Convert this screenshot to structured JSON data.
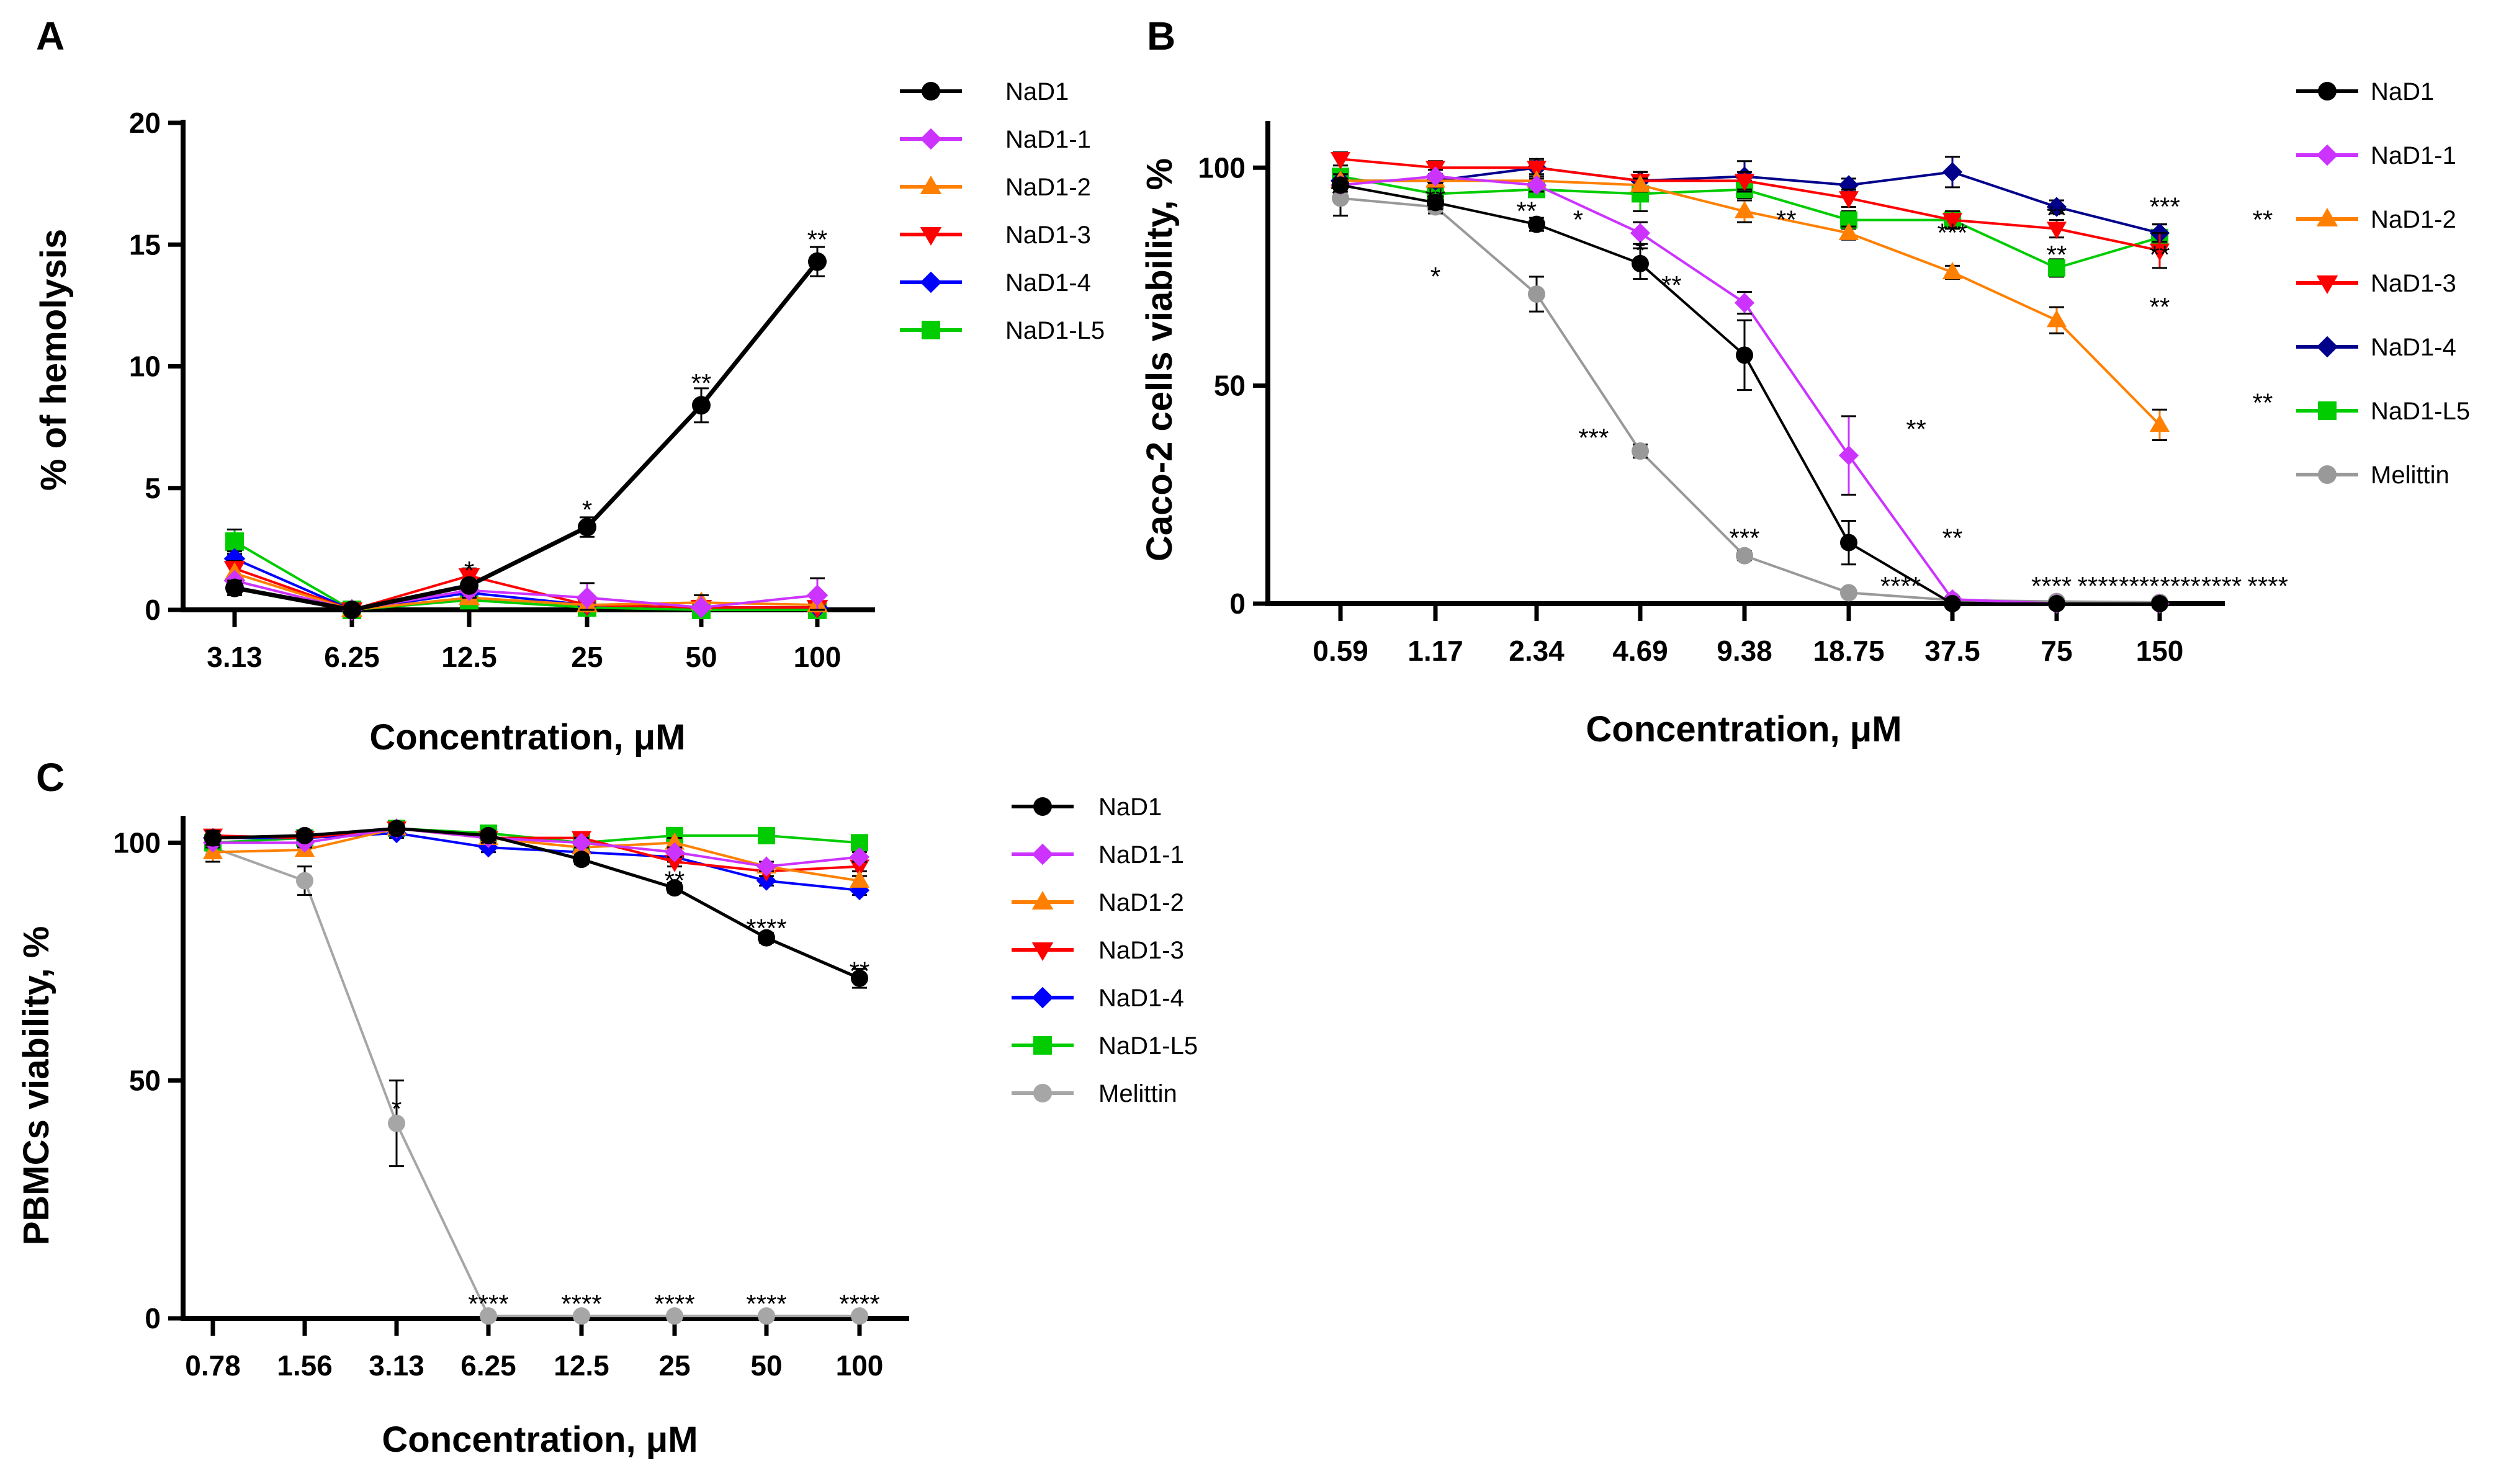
{
  "chart_data": [
    {
      "panel": "A",
      "type": "line",
      "xlabel": "Concentration, μM",
      "ylabel": "% of hemolysis",
      "categories": [
        "3.13",
        "6.25",
        "12.5",
        "25",
        "50",
        "100"
      ],
      "ylim": [
        0,
        20
      ],
      "yticks": [
        "0",
        "5",
        "10",
        "15",
        "20"
      ],
      "series": [
        {
          "name": "NaD1",
          "color": "#000000",
          "marker": "circle",
          "values": [
            0.9,
            0.0,
            1.0,
            3.4,
            8.4,
            14.3
          ],
          "errors": [
            0.3,
            0.05,
            0.2,
            0.4,
            0.7,
            0.6
          ]
        },
        {
          "name": "NaD1-1",
          "color": "#cc33ff",
          "marker": "diamond",
          "values": [
            1.2,
            0.0,
            0.8,
            0.5,
            0.1,
            0.6
          ],
          "errors": [
            0.2,
            0.05,
            0.3,
            0.6,
            0.5,
            0.7
          ]
        },
        {
          "name": "NaD1-2",
          "color": "#ff8000",
          "marker": "triangle-up",
          "values": [
            1.5,
            0.0,
            0.5,
            0.2,
            0.3,
            0.2
          ],
          "errors": [
            0.2,
            0.05,
            0.2,
            0.2,
            0.3,
            0.2
          ]
        },
        {
          "name": "NaD1-3",
          "color": "#ff0000",
          "marker": "triangle-down",
          "values": [
            1.7,
            0.0,
            1.4,
            0.2,
            0.1,
            0.1
          ],
          "errors": [
            0.3,
            0.05,
            0.3,
            0.2,
            0.2,
            0.2
          ]
        },
        {
          "name": "NaD1-4",
          "color": "#0000ff",
          "marker": "diamond",
          "values": [
            2.1,
            0.0,
            0.7,
            0.2,
            0.1,
            0.1
          ],
          "errors": [
            0.3,
            0.05,
            0.2,
            0.2,
            0.2,
            0.2
          ]
        },
        {
          "name": "NaD1-L5",
          "color": "#00cc00",
          "marker": "square",
          "values": [
            2.8,
            0.0,
            0.4,
            0.1,
            0.0,
            0.0
          ],
          "errors": [
            0.5,
            0.05,
            0.2,
            0.2,
            0.2,
            0.2
          ]
        }
      ],
      "annotations": [
        {
          "category": "12.5",
          "y": 1.6,
          "text": "*"
        },
        {
          "category": "25",
          "y": 4.1,
          "text": "*"
        },
        {
          "category": "50",
          "y": 9.3,
          "text": "**"
        },
        {
          "category": "100",
          "y": 15.2,
          "text": "**"
        }
      ]
    },
    {
      "panel": "B",
      "type": "line",
      "xlabel": "Concentration, μM",
      "ylabel": "Caco-2 cells viability, %",
      "categories": [
        "0.59",
        "1.17",
        "2.34",
        "4.69",
        "9.38",
        "18.75",
        "37.5",
        "75",
        "150"
      ],
      "ylim": [
        0,
        110
      ],
      "yticks": [
        "0",
        "50",
        "100"
      ],
      "series": [
        {
          "name": "NaD1",
          "color": "#000000",
          "marker": "circle",
          "values": [
            96,
            92,
            87,
            78,
            57,
            14,
            0,
            0,
            0
          ],
          "errors": [
            1.5,
            1.5,
            1.5,
            3.5,
            8,
            5,
            0.5,
            0.5,
            0.5
          ]
        },
        {
          "name": "NaD1-1",
          "color": "#cc33ff",
          "marker": "diamond",
          "values": [
            96,
            98,
            96,
            85,
            69,
            34,
            1,
            0,
            0
          ],
          "errors": [
            1.5,
            1.5,
            1.5,
            2.5,
            2.5,
            9,
            0.5,
            0.5,
            0.5
          ]
        },
        {
          "name": "NaD1-2",
          "color": "#ff8000",
          "marker": "triangle-up",
          "values": [
            97,
            97,
            97,
            96,
            90,
            85,
            76,
            65,
            41
          ],
          "errors": [
            1.5,
            1.5,
            1.5,
            1.5,
            2.5,
            1.5,
            1.5,
            3,
            3.5
          ]
        },
        {
          "name": "NaD1-3",
          "color": "#ff0000",
          "marker": "triangle-down",
          "values": [
            102,
            100,
            100,
            97,
            97,
            93,
            88,
            86,
            81
          ],
          "errors": [
            1.5,
            1.5,
            2,
            2,
            2,
            2,
            2,
            2,
            4
          ]
        },
        {
          "name": "NaD1-4",
          "color": "#00008b",
          "marker": "diamond",
          "values": [
            97,
            97,
            100,
            97,
            98,
            96,
            99,
            91,
            85
          ],
          "errors": [
            1.5,
            1.5,
            1.5,
            2,
            3.5,
            1.5,
            3.5,
            1.5,
            2
          ]
        },
        {
          "name": "NaD1-L5",
          "color": "#00cc00",
          "marker": "square",
          "values": [
            98,
            94,
            95,
            94,
            95,
            88,
            88,
            77,
            84
          ],
          "errors": [
            1.5,
            1.5,
            1.5,
            4,
            2,
            2,
            1.5,
            2,
            3
          ]
        },
        {
          "name": "Melittin",
          "color": "#999999",
          "marker": "circle",
          "values": [
            93,
            91,
            71,
            35,
            11,
            2.5,
            0.8,
            0.5,
            0.3
          ],
          "errors": [
            4,
            1.5,
            4,
            1.5,
            1,
            0.5,
            0.5,
            0.5,
            0.5
          ]
        }
      ],
      "annotations": [
        {
          "x_index": 0.95,
          "y": 94,
          "text": "*"
        },
        {
          "x_index": 2.0,
          "y": 93,
          "text": "**"
        },
        {
          "x_index": 2.0,
          "y": 75,
          "text": "*"
        },
        {
          "x_index": 2.9,
          "y": 90,
          "text": "**"
        },
        {
          "x_index": 3.4,
          "y": 88,
          "text": "*"
        },
        {
          "x_index": 4.0,
          "y": 81,
          "text": "*"
        },
        {
          "x_index": 4.3,
          "y": 73,
          "text": "**"
        },
        {
          "x_index": 3.55,
          "y": 38,
          "text": "***"
        },
        {
          "x_index": 5.0,
          "y": 15,
          "text": "***"
        },
        {
          "x_index": 5.4,
          "y": 88,
          "text": "**"
        },
        {
          "x_index": 6.5,
          "y": 4,
          "text": "****"
        },
        {
          "x_index": 6.65,
          "y": 40,
          "text": "**"
        },
        {
          "x_index": 7.0,
          "y": 15,
          "text": "**"
        },
        {
          "x_index": 7.0,
          "y": 85,
          "text": "***"
        },
        {
          "x_index": 7.95,
          "y": 4,
          "text": "****"
        },
        {
          "x_index": 8.0,
          "y": 89,
          "text": "**"
        },
        {
          "x_index": 8.0,
          "y": 80,
          "text": "**"
        },
        {
          "x_index": 8.4,
          "y": 4,
          "text": "****"
        },
        {
          "x_index": 8.8,
          "y": 4,
          "text": "****"
        },
        {
          "x_index": 9.0,
          "y": 80,
          "text": "**"
        },
        {
          "x_index": 9.0,
          "y": 68,
          "text": "**"
        },
        {
          "x_index": 9.05,
          "y": 91,
          "text": "***"
        },
        {
          "x_index": 9.2,
          "y": 4,
          "text": "****"
        },
        {
          "x_index": 9.6,
          "y": 4,
          "text": "****"
        },
        {
          "x_index": 10.0,
          "y": 88,
          "text": "**"
        },
        {
          "x_index": 10.0,
          "y": 46,
          "text": "**"
        },
        {
          "x_index": 10.05,
          "y": 4,
          "text": "****"
        }
      ]
    },
    {
      "panel": "C",
      "type": "line",
      "xlabel": "Concentration, μM",
      "ylabel": "PBMCs viability, %",
      "categories": [
        "0.78",
        "1.56",
        "3.13",
        "6.25",
        "12.5",
        "25",
        "50",
        "100"
      ],
      "ylim": [
        0,
        105
      ],
      "yticks": [
        "0",
        "50",
        "100"
      ],
      "series": [
        {
          "name": "NaD1",
          "color": "#000000",
          "marker": "circle",
          "values": [
            101,
            101.5,
            103,
            101.5,
            96.5,
            90.5,
            80,
            71.5
          ],
          "errors": [
            1.5,
            1,
            1,
            1,
            1,
            1,
            1,
            2
          ]
        },
        {
          "name": "NaD1-1",
          "color": "#cc33ff",
          "marker": "diamond",
          "values": [
            100,
            100,
            103,
            101,
            100,
            98,
            95,
            97
          ],
          "errors": [
            1,
            1,
            1,
            1,
            1,
            1,
            1,
            1
          ]
        },
        {
          "name": "NaD1-2",
          "color": "#ff8000",
          "marker": "triangle-up",
          "values": [
            98,
            98.5,
            103,
            101,
            99,
            100,
            95,
            92
          ],
          "errors": [
            2,
            1,
            1,
            1,
            1,
            1,
            1,
            1
          ]
        },
        {
          "name": "NaD1-3",
          "color": "#ff0000",
          "marker": "triangle-down",
          "values": [
            101.5,
            101,
            103,
            101,
            101,
            96,
            94,
            95
          ],
          "errors": [
            1,
            1,
            1,
            1,
            1,
            1,
            1,
            1
          ]
        },
        {
          "name": "NaD1-4",
          "color": "#0000ff",
          "marker": "diamond",
          "values": [
            101,
            101,
            102,
            99,
            98,
            97,
            92,
            90
          ],
          "errors": [
            1,
            1,
            1,
            1,
            1,
            1,
            1,
            1
          ]
        },
        {
          "name": "NaD1-L5",
          "color": "#00cc00",
          "marker": "square",
          "values": [
            100,
            101,
            103,
            102,
            100,
            101.5,
            101.5,
            100
          ],
          "errors": [
            1,
            1,
            1,
            1,
            1,
            1,
            1,
            1
          ]
        },
        {
          "name": "Melittin",
          "color": "#a6a6a6",
          "marker": "circle",
          "values": [
            99,
            92,
            41,
            0.5,
            0.5,
            0.5,
            0.5,
            0.5
          ],
          "errors": [
            1.5,
            3,
            9,
            0.5,
            0.5,
            0.5,
            0.5,
            0.5
          ]
        }
      ],
      "annotations": [
        {
          "category": "3.13",
          "y": 44,
          "text": "*"
        },
        {
          "category": "6.25",
          "y": 3,
          "text": "****"
        },
        {
          "category": "12.5",
          "y": 3,
          "text": "****"
        },
        {
          "category": "25",
          "y": 3,
          "text": "****"
        },
        {
          "category": "50",
          "y": 3,
          "text": "****"
        },
        {
          "category": "100",
          "y": 3,
          "text": "****"
        },
        {
          "category": "25",
          "y": 92,
          "text": "**"
        },
        {
          "category": "50",
          "y": 82,
          "text": "****"
        },
        {
          "category": "100",
          "y": 73,
          "text": "**"
        }
      ]
    }
  ]
}
